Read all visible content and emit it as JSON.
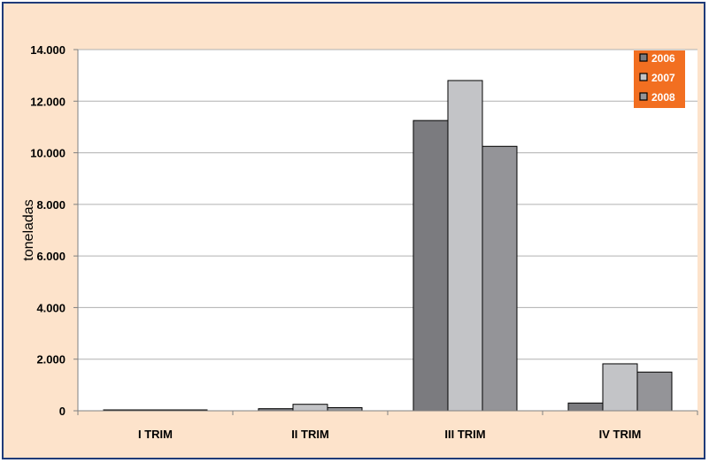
{
  "chart_data": {
    "type": "bar",
    "categories": [
      "I TRIM",
      "II TRIM",
      "III TRIM",
      "IV TRIM"
    ],
    "series": [
      {
        "name": "2006",
        "values": [
          20,
          80,
          11250,
          300
        ],
        "color": "#7b7b7f"
      },
      {
        "name": "2007",
        "values": [
          10,
          250,
          12800,
          1820
        ],
        "color": "#c3c4c7"
      },
      {
        "name": "2008",
        "values": [
          20,
          120,
          10250,
          1500
        ],
        "color": "#949498"
      }
    ],
    "ylabel": "toneladas",
    "ylim": [
      0,
      14000
    ],
    "yticks": [
      "0",
      "2.000",
      "4.000",
      "6.000",
      "8.000",
      "10.000",
      "12.000",
      "14.000"
    ],
    "grid": true,
    "legend_position": "top-right",
    "colors": {
      "background": "#fde3cb",
      "plot_background": "#ffffff",
      "border": "#1f3b79",
      "legend_background": "#f26f21",
      "gridline": "#b0b0b0"
    }
  }
}
